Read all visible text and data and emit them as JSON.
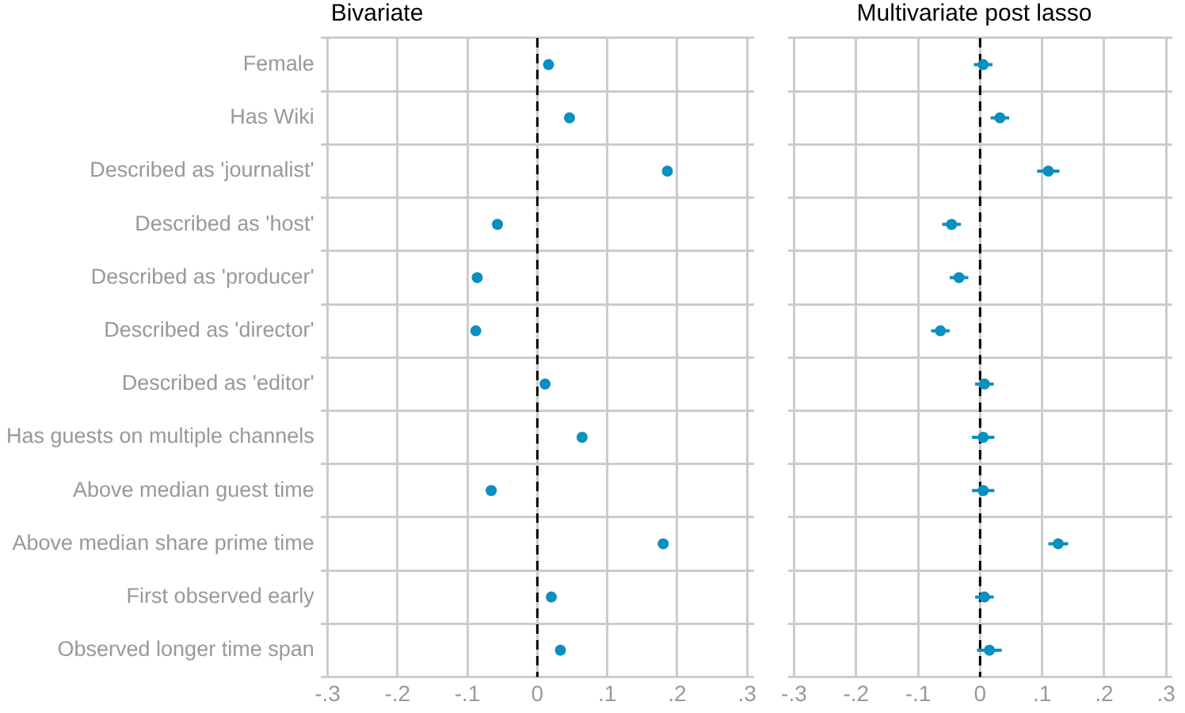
{
  "chart_data": [
    {
      "type": "scatter",
      "orientation": "horizontal",
      "title": "Bivariate",
      "categories": [
        "Female",
        "Has Wiki",
        "Described as 'journalist'",
        "Described as 'host'",
        "Described as 'producer'",
        "Described as 'director'",
        "Described as 'editor'",
        "Has guests on multiple channels",
        "Above median guest time",
        "Above median share prime time",
        "First observed early",
        "Observed longer time span"
      ],
      "series": [
        {
          "color": "#0a8fc0",
          "values": [
            0.016,
            0.046,
            0.186,
            -0.057,
            -0.086,
            -0.088,
            0.011,
            0.064,
            -0.066,
            0.18,
            0.02,
            0.033
          ]
        }
      ],
      "xlim": [
        -0.31,
        0.31
      ],
      "xticks": [
        {
          "value": -0.3,
          "label": "-.3"
        },
        {
          "value": -0.2,
          "label": "-.2"
        },
        {
          "value": -0.1,
          "label": "-.1"
        },
        0,
        {
          "value": 0.1,
          "label": ".1"
        },
        {
          "value": 0.2,
          "label": ".2"
        },
        {
          "value": 0.3,
          "label": ".3"
        }
      ],
      "ref_lines": [
        {
          "axis": "x",
          "value": 0,
          "color": "#000000",
          "line_style": "dashed"
        }
      ],
      "grid": true,
      "marker": "circle",
      "legend": false
    },
    {
      "type": "scatter",
      "orientation": "horizontal",
      "title": "Multivariate post lasso",
      "categories": [
        null,
        null,
        null,
        null,
        null,
        null,
        null,
        null,
        null,
        null,
        null,
        null
      ],
      "series": [
        {
          "color": "#0a8fc0",
          "values": [
            0.005,
            0.032,
            0.11,
            -0.046,
            -0.034,
            -0.064,
            0.007,
            0.005,
            0.005,
            0.126,
            0.007,
            0.015
          ],
          "errors": [
            0.015,
            0.015,
            0.018,
            0.015,
            0.015,
            0.015,
            0.015,
            0.018,
            0.018,
            0.016,
            0.015,
            0.02
          ]
        }
      ],
      "xlim": [
        -0.31,
        0.31
      ],
      "xticks": [
        {
          "value": -0.3,
          "label": "-.3"
        },
        {
          "value": -0.2,
          "label": "-.2"
        },
        {
          "value": -0.1,
          "label": "-.1"
        },
        0,
        {
          "value": 0.1,
          "label": ".1"
        },
        {
          "value": 0.2,
          "label": ".2"
        },
        {
          "value": 0.3,
          "label": ".3"
        }
      ],
      "ref_lines": [
        {
          "axis": "x",
          "value": 0,
          "color": "#000000",
          "line_style": "dashed"
        }
      ],
      "grid": true,
      "marker": "circle",
      "legend": false,
      "tick_labels": "x"
    }
  ]
}
